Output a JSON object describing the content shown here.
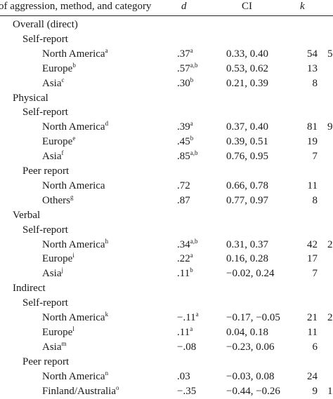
{
  "header": {
    "col_label": "of aggression, method, and category",
    "col_d": "d",
    "col_ci": "CI",
    "col_k": "k"
  },
  "rows": [
    {
      "label": "Overall (direct)",
      "level": 0
    },
    {
      "label": "Self-report",
      "level": 1
    },
    {
      "label": "North America",
      "sup": "a",
      "level": 2,
      "d": ".37",
      "d_sup": "a",
      "ci": "0.33, 0.40",
      "k": "54",
      "extra": "5"
    },
    {
      "label": "Europe",
      "sup": "b",
      "level": 2,
      "d": ".57",
      "d_sup": "a,b",
      "ci": "0.53, 0.62",
      "k": "13",
      "extra": ""
    },
    {
      "label": "Asia",
      "sup": "c",
      "level": 2,
      "d": ".30",
      "d_sup": "b",
      "ci": "0.21, 0.39",
      "k": "8",
      "extra": ""
    },
    {
      "label": "Physical",
      "level": 0
    },
    {
      "label": "Self-report",
      "level": 1
    },
    {
      "label": "North America",
      "sup": "d",
      "level": 2,
      "d": ".39",
      "d_sup": "a",
      "ci": "0.37, 0.40",
      "k": "81",
      "extra": "9"
    },
    {
      "label": "Europe",
      "sup": "e",
      "level": 2,
      "d": ".45",
      "d_sup": "b",
      "ci": "0.39, 0.51",
      "k": "19",
      "extra": ""
    },
    {
      "label": "Asia",
      "sup": "f",
      "level": 2,
      "d": ".85",
      "d_sup": "a,b",
      "ci": "0.76, 0.95",
      "k": "7",
      "extra": ""
    },
    {
      "label": "Peer report",
      "level": 1
    },
    {
      "label": "North America",
      "sup": "",
      "level": 2,
      "d": ".72",
      "d_sup": "",
      "ci": "0.66, 0.78",
      "k": "11",
      "extra": ""
    },
    {
      "label": "Others",
      "sup": "g",
      "level": 2,
      "d": ".87",
      "d_sup": "",
      "ci": "0.77, 0.97",
      "k": "8",
      "extra": ""
    },
    {
      "label": "Verbal",
      "level": 0
    },
    {
      "label": "Self-report",
      "level": 1
    },
    {
      "label": "North America",
      "sup": "h",
      "level": 2,
      "d": ".34",
      "d_sup": "a,b",
      "ci": "0.31, 0.37",
      "k": "42",
      "extra": "2"
    },
    {
      "label": "Europe",
      "sup": "i",
      "level": 2,
      "d": ".22",
      "d_sup": "a",
      "ci": "0.16, 0.28",
      "k": "17",
      "extra": ""
    },
    {
      "label": "Asia",
      "sup": "j",
      "level": 2,
      "d": ".11",
      "d_sup": "b",
      "ci": "−0.02, 0.24",
      "k": "7",
      "extra": ""
    },
    {
      "label": "Indirect",
      "level": 0
    },
    {
      "label": "Self-report",
      "level": 1
    },
    {
      "label": "North America",
      "sup": "k",
      "level": 2,
      "d": "−.11",
      "d_sup": "a",
      "ci": "−0.17, −0.05",
      "k": "21",
      "extra": "2"
    },
    {
      "label": "Europe",
      "sup": "l",
      "level": 2,
      "d": ".11",
      "d_sup": "a",
      "ci": "0.04, 0.18",
      "k": "11",
      "extra": ""
    },
    {
      "label": "Asia",
      "sup": "m",
      "level": 2,
      "d": "−.08",
      "d_sup": "",
      "ci": "−0.23, 0.06",
      "k": "6",
      "extra": ""
    },
    {
      "label": "Peer report",
      "level": 1
    },
    {
      "label": "North America",
      "sup": "n",
      "level": 2,
      "d": ".03",
      "d_sup": "",
      "ci": "−0.03, 0.08",
      "k": "24",
      "extra": ""
    },
    {
      "label": "Finland/Australia",
      "sup": "o",
      "level": 2,
      "d": "−.35",
      "d_sup": "",
      "ci": "−0.44, −0.26",
      "k": "9",
      "extra": "1"
    }
  ]
}
